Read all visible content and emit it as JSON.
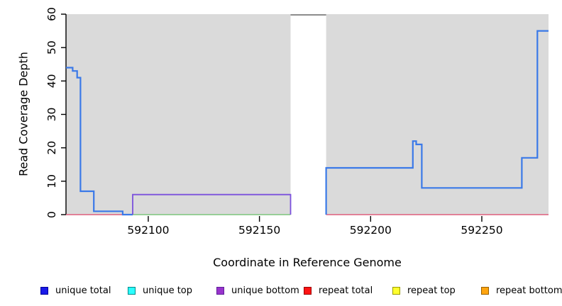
{
  "chart_data": {
    "type": "line",
    "title": "",
    "xlabel": "Coordinate in Reference Genome",
    "ylabel": "Read Coverage Depth",
    "xlim": [
      592063,
      592280
    ],
    "ylim": [
      0,
      60
    ],
    "x_ticks": [
      592100,
      592150,
      592200,
      592250
    ],
    "y_ticks": [
      0,
      10,
      20,
      30,
      40,
      50,
      60
    ],
    "grid": false,
    "legend_position": "bottom",
    "plot_bg_color": "#DADADA",
    "axis_color": "#000000",
    "masked_region": {
      "x_start": 592164,
      "x_end": 592180,
      "fill": "#FFFFFF",
      "top_line_color": "#8C8C8C",
      "top_value": 60
    },
    "series": [
      {
        "name": "repeat total",
        "color": "#DD5E7C",
        "width": 1.6,
        "segments": [
          [
            [
              592063,
              0
            ],
            [
              592093,
              0
            ]
          ],
          [
            [
              592180,
              0
            ],
            [
              592280,
              0
            ]
          ]
        ]
      },
      {
        "name": "unique total",
        "color": "#3A79E8",
        "width": 2.2,
        "segments": [
          [
            [
              592063,
              44
            ],
            [
              592066,
              44
            ],
            [
              592066,
              43
            ],
            [
              592068,
              43
            ],
            [
              592068,
              41
            ],
            [
              592069.5,
              41
            ],
            [
              592069.5,
              7
            ],
            [
              592075.5,
              7
            ],
            [
              592075.5,
              1
            ],
            [
              592088.5,
              1
            ],
            [
              592088.5,
              0
            ],
            [
              592093,
              0
            ]
          ],
          [
            [
              592180,
              0
            ],
            [
              592180,
              14
            ],
            [
              592219,
              14
            ],
            [
              592219,
              22
            ],
            [
              592220.5,
              22
            ],
            [
              592220.5,
              21
            ],
            [
              592223,
              21
            ],
            [
              592223,
              8
            ],
            [
              592268,
              8
            ],
            [
              592268,
              17
            ],
            [
              592275,
              17
            ],
            [
              592275,
              55
            ],
            [
              592280,
              55
            ]
          ]
        ]
      },
      {
        "name": "zero baseline green",
        "color": "#7CC47C",
        "width": 1.6,
        "segments": [
          [
            [
              592093,
              0
            ],
            [
              592164,
              0
            ]
          ]
        ]
      },
      {
        "name": "unique bottom",
        "color": "#7B50DC",
        "width": 1.8,
        "segments": [
          [
            [
              592093,
              0
            ],
            [
              592093,
              6
            ],
            [
              592164,
              6
            ],
            [
              592164,
              0
            ]
          ]
        ]
      }
    ],
    "legend": {
      "items": [
        {
          "label": "unique total",
          "fill": "#1A1AE8",
          "border": "#000099"
        },
        {
          "label": "unique top",
          "fill": "#2BFFFF",
          "border": "#008B8B"
        },
        {
          "label": "unique bottom",
          "fill": "#9933CC",
          "border": "#5E1F99"
        },
        {
          "label": "repeat total",
          "fill": "#FF1414",
          "border": "#990000"
        },
        {
          "label": "repeat top",
          "fill": "#FFFF2E",
          "border": "#9B9B00"
        },
        {
          "label": "repeat bottom",
          "fill": "#FFA510",
          "border": "#995F00"
        }
      ]
    }
  }
}
